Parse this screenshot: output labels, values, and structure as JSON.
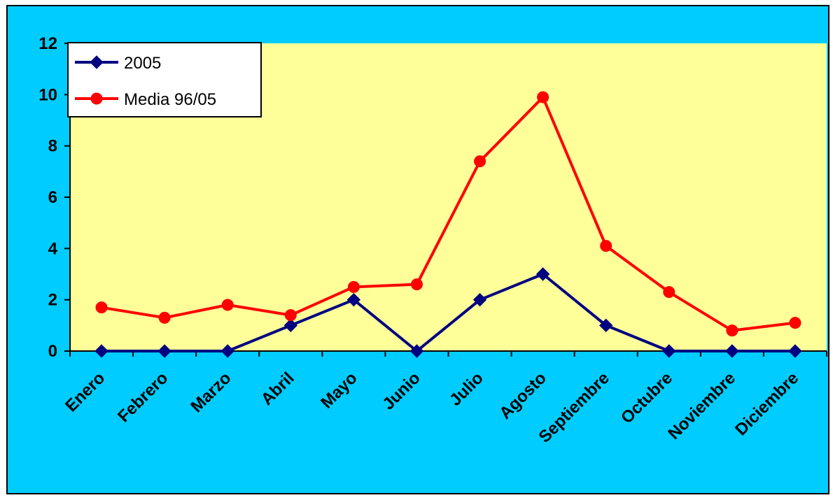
{
  "chart_data": {
    "type": "line",
    "title": "",
    "xlabel": "",
    "ylabel": "",
    "categories": [
      "Enero",
      "Febrero",
      "Marzo",
      "Abril",
      "Mayo",
      "Junio",
      "Julio",
      "Agosto",
      "Septiembre",
      "Octubre",
      "Noviembre",
      "Diciembre"
    ],
    "ylim": [
      0,
      12
    ],
    "yticks": [
      "0",
      "2",
      "4",
      "6",
      "8",
      "10",
      "12"
    ],
    "grid": false,
    "legend_position": "top-left",
    "series": [
      {
        "name": "2005",
        "color": "#000080",
        "marker": "diamond",
        "values": [
          0,
          0,
          0,
          1,
          2,
          0,
          2,
          3,
          1,
          0,
          0,
          0
        ]
      },
      {
        "name": "Media 96/05",
        "color": "#ff0000",
        "marker": "circle",
        "values": [
          1.7,
          1.3,
          1.8,
          1.4,
          2.5,
          2.6,
          7.4,
          9.9,
          4.1,
          2.3,
          0.8,
          1.1
        ]
      }
    ],
    "plot_background": "#ffff99",
    "chart_background": "#00ccff"
  }
}
